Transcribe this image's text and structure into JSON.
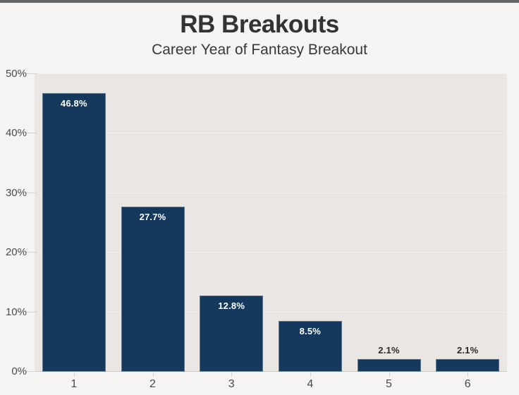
{
  "chart_data": {
    "type": "bar",
    "title": "RB Breakouts",
    "subtitle": "Career Year of Fantasy Breakout",
    "xlabel": "",
    "ylabel": "",
    "categories": [
      "1",
      "2",
      "3",
      "4",
      "5",
      "6"
    ],
    "values": [
      46.8,
      27.7,
      12.8,
      8.5,
      2.1,
      2.1
    ],
    "data_labels": [
      "46.8%",
      "27.7%",
      "12.8%",
      "8.5%",
      "2.1%",
      "2.1%"
    ],
    "ylim": [
      0,
      50
    ],
    "ytick_step": 10,
    "ytick_labels": [
      "0%",
      "10%",
      "20%",
      "30%",
      "40%",
      "50%"
    ],
    "grid": true,
    "legend": false,
    "inside_label_threshold": 5
  },
  "colors": {
    "page_bg": "#f5f4f2",
    "plot_bg": "#e9e6e3",
    "topbar": "#666666",
    "title_text": "#333333",
    "subtitle_text": "#383838",
    "bar": "#14395c",
    "bar_edge": "rgba(255,255,255,0.32)",
    "gridline": "#f1efec",
    "tick": "#d6d3d0",
    "axis_line": "#c7c4c1",
    "axis_text": "#4a4a4a",
    "label_inside": "#ffffff",
    "label_outside": "#2b2b2b"
  }
}
